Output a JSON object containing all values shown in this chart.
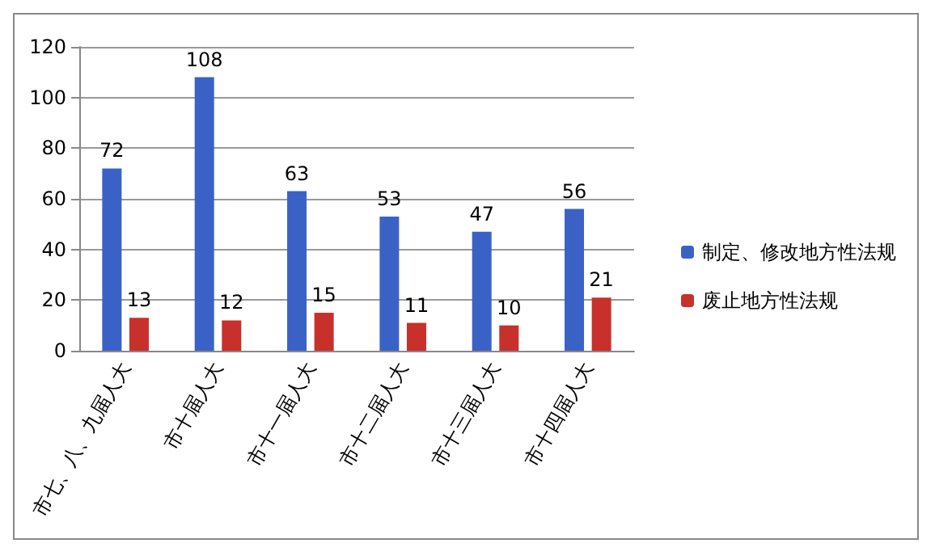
{
  "chart_data": {
    "type": "bar",
    "categories": [
      "市七、八、九届人大",
      "市十届人大",
      "市十一届人大",
      "市十二届人大",
      "市十三届人大",
      "市十四届人大"
    ],
    "series": [
      {
        "name": "制定、修改地方性法规",
        "color": "#3a62c6",
        "values": [
          72,
          108,
          63,
          53,
          47,
          56
        ]
      },
      {
        "name": "废止地方性法规",
        "color": "#c8302c",
        "values": [
          13,
          12,
          15,
          11,
          10,
          21
        ]
      }
    ],
    "ylim": [
      0,
      120
    ],
    "yticks": [
      0,
      20,
      40,
      60,
      80,
      100,
      120
    ],
    "grid": "y",
    "legend": "right",
    "data_labels": true
  }
}
